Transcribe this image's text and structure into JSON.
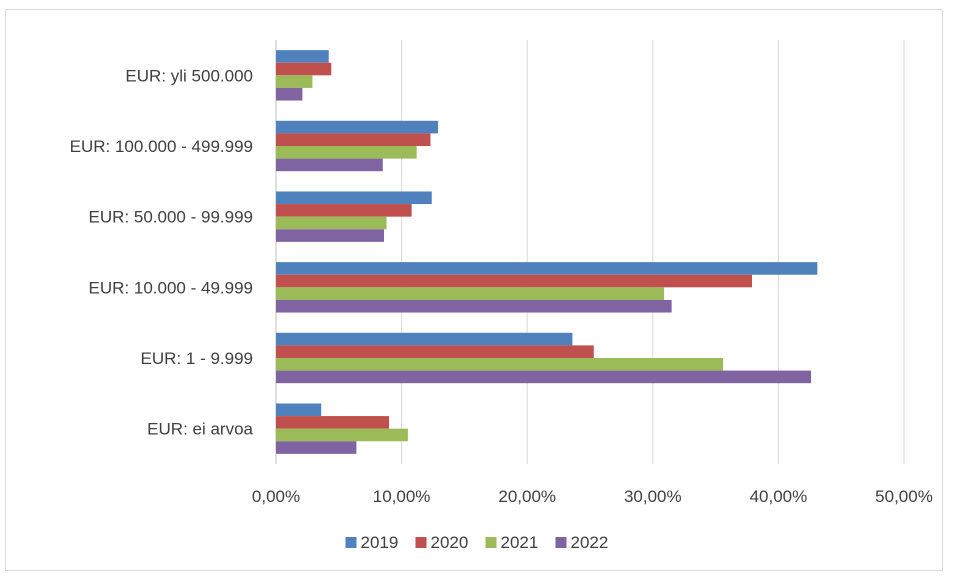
{
  "chart_data": {
    "type": "bar",
    "orientation": "horizontal",
    "categories": [
      "EUR: yli 500.000",
      "EUR: 100.000 - 499.999",
      "EUR: 50.000 - 99.999",
      "EUR: 10.000 - 49.999",
      "EUR: 1 - 9.999",
      "EUR: ei arvoa"
    ],
    "series": [
      {
        "name": "2019",
        "color": "#4f81bd",
        "values": [
          4.2,
          12.9,
          12.4,
          43.1,
          23.6,
          3.6
        ]
      },
      {
        "name": "2020",
        "color": "#c0504d",
        "values": [
          4.4,
          12.3,
          10.8,
          37.9,
          25.3,
          9.0
        ]
      },
      {
        "name": "2021",
        "color": "#9bbb59",
        "values": [
          2.9,
          11.2,
          8.8,
          30.9,
          35.6,
          10.5
        ]
      },
      {
        "name": "2022",
        "color": "#8064a2",
        "values": [
          2.1,
          8.5,
          8.6,
          31.5,
          42.6,
          6.4
        ]
      }
    ],
    "xlim": [
      0,
      50
    ],
    "x_ticks": [
      "0,00%",
      "10,00%",
      "20,00%",
      "30,00%",
      "40,00%",
      "50,00%"
    ],
    "grid": true,
    "legend_position": "bottom",
    "title": "",
    "xlabel": "",
    "ylabel": ""
  }
}
